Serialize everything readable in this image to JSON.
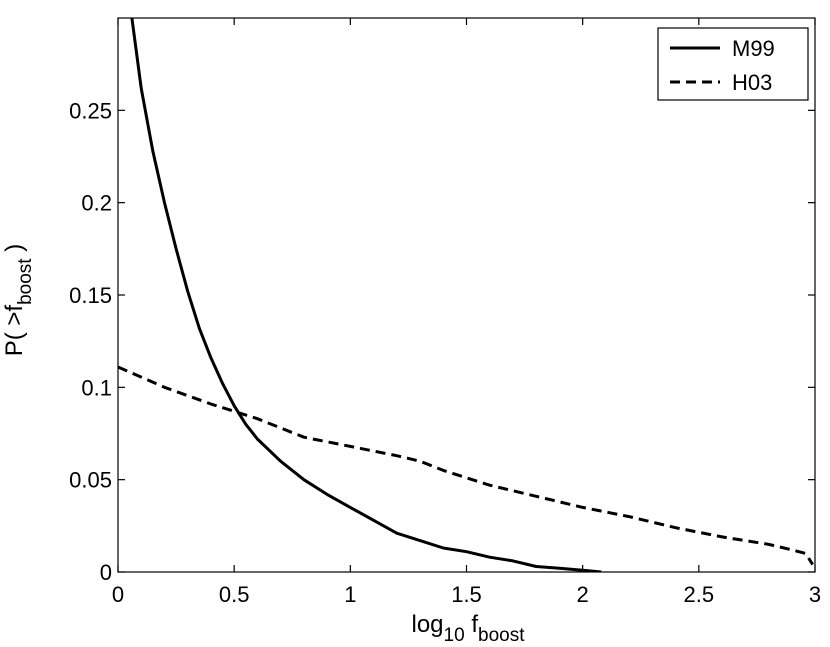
{
  "chart_data": {
    "type": "line",
    "xlabel": {
      "main": "log",
      "sub": "10",
      "var": " f",
      "var_sub": "boost"
    },
    "ylabel": {
      "main": "P( >f",
      "sub": "boost",
      "end": " )"
    },
    "xlim": [
      0,
      3
    ],
    "ylim": [
      0,
      0.3
    ],
    "xticks": [
      0,
      0.5,
      1,
      1.5,
      2,
      2.5,
      3
    ],
    "xtick_labels": [
      "0",
      "0.5",
      "1",
      "1.5",
      "2",
      "2.5",
      "3"
    ],
    "yticks": [
      0,
      0.05,
      0.1,
      0.15,
      0.2,
      0.25
    ],
    "ytick_labels": [
      "0",
      "0.05",
      "0.1",
      "0.15",
      "0.2",
      "0.25"
    ],
    "grid": false,
    "legend_position": "top-right",
    "series": [
      {
        "name": "M99",
        "style": "solid",
        "color": "#000000",
        "x": [
          0.06,
          0.1,
          0.15,
          0.2,
          0.25,
          0.3,
          0.35,
          0.4,
          0.45,
          0.5,
          0.55,
          0.6,
          0.7,
          0.8,
          0.9,
          1.0,
          1.1,
          1.2,
          1.3,
          1.4,
          1.5,
          1.6,
          1.7,
          1.8,
          1.9,
          2.0,
          2.08
        ],
        "y": [
          0.3,
          0.262,
          0.228,
          0.2,
          0.175,
          0.152,
          0.132,
          0.116,
          0.102,
          0.09,
          0.08,
          0.072,
          0.06,
          0.05,
          0.042,
          0.035,
          0.028,
          0.021,
          0.017,
          0.013,
          0.011,
          0.008,
          0.006,
          0.003,
          0.002,
          0.001,
          0.0
        ]
      },
      {
        "name": "H03",
        "style": "dashed",
        "color": "#000000",
        "x": [
          0.0,
          0.2,
          0.4,
          0.6,
          0.8,
          1.0,
          1.2,
          1.3,
          1.4,
          1.6,
          1.8,
          2.0,
          2.2,
          2.4,
          2.6,
          2.8,
          2.9,
          2.96,
          2.99
        ],
        "y": [
          0.111,
          0.1,
          0.091,
          0.083,
          0.073,
          0.068,
          0.063,
          0.06,
          0.055,
          0.047,
          0.041,
          0.035,
          0.03,
          0.024,
          0.019,
          0.015,
          0.012,
          0.01,
          0.004
        ]
      }
    ]
  }
}
